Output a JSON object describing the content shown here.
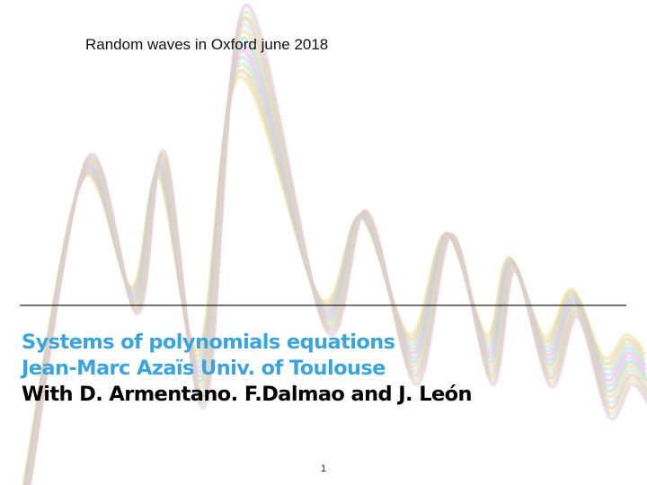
{
  "header": {
    "text": "Random waves in Oxford june 2018"
  },
  "title": {
    "lines": [
      "Systems of polynomials equations",
      "Jean-Marc  Azaïs Univ. of Toulouse",
      "With D. Armentano. F.Dalmao and J. León"
    ]
  },
  "page_number": "1"
}
